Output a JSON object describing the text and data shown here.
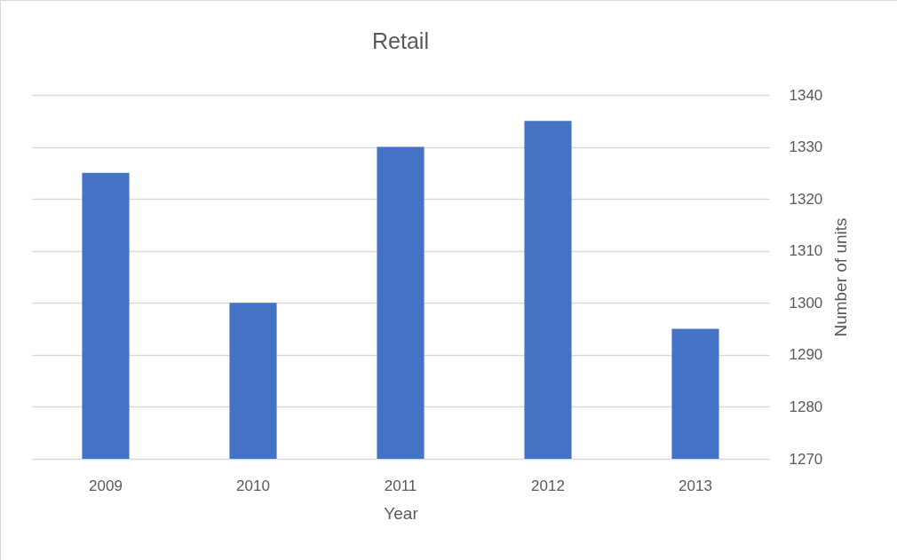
{
  "chart_data": {
    "type": "bar",
    "title": "Retail",
    "xlabel": "Year",
    "ylabel": "Number of units",
    "categories": [
      "2009",
      "2010",
      "2011",
      "2012",
      "2013"
    ],
    "values": [
      1325,
      1300,
      1330,
      1335,
      1295
    ],
    "color": "#4472c4",
    "ylim": [
      1270,
      1340
    ],
    "yticks": [
      1270,
      1280,
      1290,
      1300,
      1310,
      1320,
      1330,
      1340
    ],
    "grid": "y"
  }
}
